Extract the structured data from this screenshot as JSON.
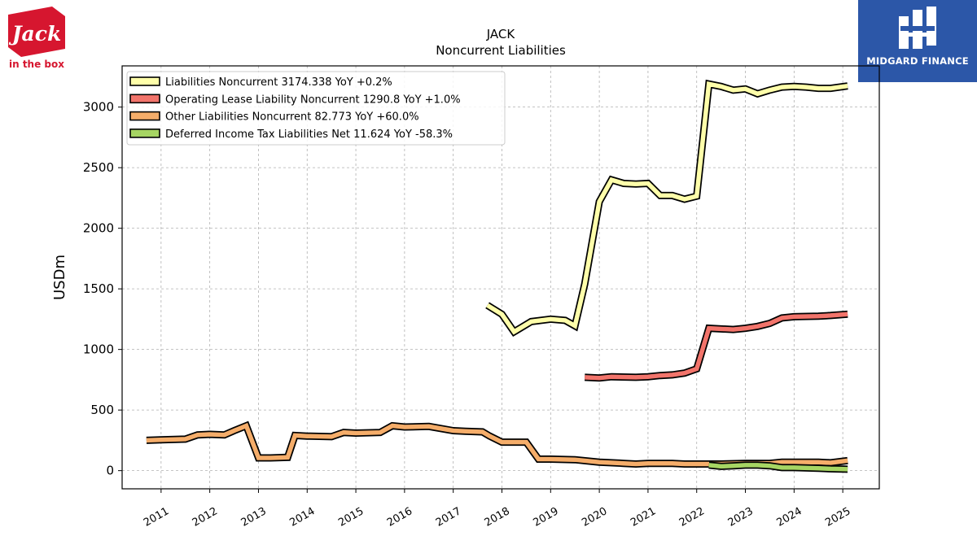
{
  "logos": {
    "left_brand": "Jack",
    "left_sub": "in the box",
    "right_brand": "MIDGARD FINANCE"
  },
  "colors": {
    "liabilities_noncurrent": "#ffffaa",
    "operating_lease": "#f2746b",
    "other_liabilities": "#f5ad6a",
    "deferred_tax": "#a6d563",
    "outline": "#000000",
    "grid": "#b0b0b0",
    "brand_red": "#d6162f",
    "brand_blue": "#2c57a8"
  },
  "chart_data": {
    "type": "line",
    "title": "JACK",
    "subtitle": "Noncurrent  Liabilities",
    "ylabel": "USDm",
    "xlabel": "",
    "xlim": [
      2010.2,
      2025.75
    ],
    "ylim": [
      -150,
      3340
    ],
    "yticks": [
      0,
      500,
      1000,
      1500,
      2000,
      2500,
      3000
    ],
    "xticks": [
      "2011",
      "2012",
      "2013",
      "2014",
      "2015",
      "2016",
      "2017",
      "2018",
      "2019",
      "2020",
      "2021",
      "2022",
      "2023",
      "2024",
      "2025"
    ],
    "grid": true,
    "legend_position": "top-left",
    "series": [
      {
        "name": "Liabilities Noncurrent  3174.338 YoY +0.2%",
        "color_key": "liabilities_noncurrent",
        "points": [
          [
            2017.7,
            1365
          ],
          [
            2018.0,
            1290
          ],
          [
            2018.25,
            1145
          ],
          [
            2018.6,
            1230
          ],
          [
            2019.0,
            1250
          ],
          [
            2019.3,
            1240
          ],
          [
            2019.5,
            1195
          ],
          [
            2019.7,
            1540
          ],
          [
            2020.0,
            2220
          ],
          [
            2020.25,
            2400
          ],
          [
            2020.5,
            2370
          ],
          [
            2020.75,
            2365
          ],
          [
            2021.0,
            2370
          ],
          [
            2021.25,
            2270
          ],
          [
            2021.5,
            2270
          ],
          [
            2021.75,
            2240
          ],
          [
            2022.0,
            2265
          ],
          [
            2022.25,
            3190
          ],
          [
            2022.5,
            3170
          ],
          [
            2022.75,
            3140
          ],
          [
            2023.0,
            3150
          ],
          [
            2023.25,
            3110
          ],
          [
            2023.5,
            3140
          ],
          [
            2023.75,
            3165
          ],
          [
            2024.0,
            3170
          ],
          [
            2024.25,
            3165
          ],
          [
            2024.5,
            3155
          ],
          [
            2024.75,
            3155
          ],
          [
            2025.1,
            3174
          ]
        ]
      },
      {
        "name": "Operating Lease Liability Noncurrent  1290.8 YoY +1.0%",
        "color_key": "operating_lease",
        "points": [
          [
            2019.7,
            770
          ],
          [
            2020.0,
            765
          ],
          [
            2020.25,
            775
          ],
          [
            2020.75,
            770
          ],
          [
            2021.0,
            775
          ],
          [
            2021.25,
            785
          ],
          [
            2021.5,
            790
          ],
          [
            2021.75,
            805
          ],
          [
            2022.0,
            840
          ],
          [
            2022.25,
            1175
          ],
          [
            2022.75,
            1165
          ],
          [
            2023.0,
            1175
          ],
          [
            2023.25,
            1190
          ],
          [
            2023.5,
            1215
          ],
          [
            2023.75,
            1260
          ],
          [
            2024.0,
            1270
          ],
          [
            2024.5,
            1275
          ],
          [
            2024.75,
            1280
          ],
          [
            2025.1,
            1290.8
          ]
        ]
      },
      {
        "name": "Other Liabilities Noncurrent  82.773 YoY +60.0%",
        "color_key": "other_liabilities",
        "points": [
          [
            2010.7,
            250
          ],
          [
            2011.0,
            255
          ],
          [
            2011.5,
            260
          ],
          [
            2011.75,
            295
          ],
          [
            2012.0,
            300
          ],
          [
            2012.3,
            295
          ],
          [
            2012.5,
            330
          ],
          [
            2012.75,
            370
          ],
          [
            2013.0,
            105
          ],
          [
            2013.25,
            105
          ],
          [
            2013.6,
            110
          ],
          [
            2013.75,
            290
          ],
          [
            2014.0,
            285
          ],
          [
            2014.5,
            280
          ],
          [
            2014.75,
            315
          ],
          [
            2015.0,
            310
          ],
          [
            2015.5,
            315
          ],
          [
            2015.75,
            370
          ],
          [
            2016.0,
            360
          ],
          [
            2016.5,
            365
          ],
          [
            2017.0,
            330
          ],
          [
            2017.25,
            325
          ],
          [
            2017.6,
            320
          ],
          [
            2017.75,
            285
          ],
          [
            2018.0,
            235
          ],
          [
            2018.25,
            235
          ],
          [
            2018.5,
            235
          ],
          [
            2018.75,
            95
          ],
          [
            2019.0,
            95
          ],
          [
            2019.5,
            90
          ],
          [
            2020.0,
            70
          ],
          [
            2020.5,
            60
          ],
          [
            2020.75,
            55
          ],
          [
            2021.0,
            60
          ],
          [
            2021.5,
            60
          ],
          [
            2021.75,
            55
          ],
          [
            2022.0,
            55
          ],
          [
            2022.5,
            55
          ],
          [
            2023.0,
            60
          ],
          [
            2023.25,
            60
          ],
          [
            2023.5,
            60
          ],
          [
            2023.75,
            70
          ],
          [
            2024.0,
            70
          ],
          [
            2024.5,
            70
          ],
          [
            2024.75,
            65
          ],
          [
            2025.1,
            82.773
          ]
        ]
      },
      {
        "name": "Deferred Income Tax Liabilities Net  11.624 YoY -58.3%",
        "color_key": "deferred_tax",
        "points": [
          [
            2022.25,
            45
          ],
          [
            2022.5,
            35
          ],
          [
            2022.75,
            40
          ],
          [
            2023.0,
            45
          ],
          [
            2023.25,
            45
          ],
          [
            2023.5,
            40
          ],
          [
            2023.75,
            25
          ],
          [
            2024.0,
            25
          ],
          [
            2024.5,
            20
          ],
          [
            2024.75,
            15
          ],
          [
            2025.1,
            11.624
          ]
        ]
      }
    ]
  }
}
